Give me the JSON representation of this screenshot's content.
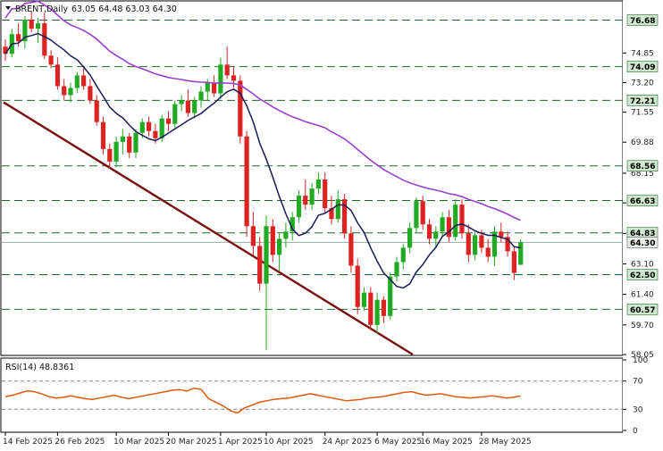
{
  "header": {
    "symbol": "BRENT,Daily",
    "ohlc": "63.05 64.48 63.03 64.30",
    "arrow_icon": "triangle-down-icon"
  },
  "rsi": {
    "title": "RSI(14) 48.8361",
    "levels": [
      100,
      70,
      30,
      0
    ],
    "line_color": "#e05a10",
    "level_color": "#888888",
    "values": [
      48,
      50,
      53,
      56,
      55,
      52,
      48,
      46,
      47,
      49,
      47,
      45,
      44,
      46,
      48,
      50,
      47,
      45,
      47,
      49,
      51,
      53,
      55,
      57,
      58,
      56,
      60,
      58,
      45,
      40,
      35,
      28,
      25,
      32,
      36,
      40,
      42,
      44,
      45,
      46,
      48,
      50,
      52,
      50,
      48,
      46,
      44,
      42,
      43,
      44,
      46,
      47,
      48,
      50,
      52,
      54,
      55,
      52,
      50,
      51,
      52,
      50,
      48,
      47,
      46,
      47,
      48,
      49,
      48,
      46,
      47,
      49
    ]
  },
  "colors": {
    "bull": "#22aa22",
    "bear": "#dd2222",
    "ma_fast": "#1a1a5a",
    "ma_slow": "#9b3fd0",
    "trend": "#7a1010",
    "level_line": "#1c6b2a",
    "price_tag": "#cfe8cf"
  },
  "chart_data": {
    "type": "candlestick",
    "title": "BRENT,Daily",
    "ylim": [
      58.05,
      77.7
    ],
    "y_ticks": [
      74.85,
      73.2,
      71.55,
      69.88,
      68.15,
      66.5,
      64.8,
      63.1,
      61.4,
      59.7,
      58.05
    ],
    "x_labels": [
      "14 Feb 2025",
      "26 Feb 2025",
      "10 Mar 2025",
      "20 Mar 2025",
      "1 Apr 2025",
      "10 Apr 2025",
      "24 Apr 2025",
      "6 May 2025",
      "16 May 2025",
      "28 May 2025"
    ],
    "x_label_index": [
      0,
      8,
      17,
      25,
      33,
      40,
      49,
      57,
      64,
      73
    ],
    "levels": [
      76.68,
      74.09,
      72.21,
      68.56,
      66.63,
      64.83,
      62.5,
      60.57
    ],
    "current_price": 64.3,
    "candles": [
      [
        75.2,
        75.6,
        74.4,
        74.8
      ],
      [
        74.8,
        76.2,
        74.6,
        75.9
      ],
      [
        75.9,
        76.5,
        75.2,
        75.5
      ],
      [
        75.5,
        76.9,
        75.1,
        76.7
      ],
      [
        76.7,
        77.2,
        76.0,
        76.2
      ],
      [
        76.2,
        76.8,
        75.4,
        76.5
      ],
      [
        76.5,
        77.1,
        74.5,
        74.7
      ],
      [
        74.7,
        75.0,
        74.0,
        74.2
      ],
      [
        74.2,
        74.6,
        72.8,
        73.0
      ],
      [
        73.0,
        73.4,
        72.2,
        72.5
      ],
      [
        72.5,
        73.2,
        72.1,
        72.9
      ],
      [
        72.9,
        73.8,
        72.6,
        73.6
      ],
      [
        73.6,
        74.0,
        72.8,
        73.0
      ],
      [
        73.0,
        73.4,
        72.0,
        72.2
      ],
      [
        72.2,
        72.5,
        70.8,
        71.0
      ],
      [
        71.0,
        71.3,
        69.2,
        69.5
      ],
      [
        69.5,
        69.8,
        68.4,
        68.8
      ],
      [
        68.8,
        70.2,
        68.5,
        69.9
      ],
      [
        69.9,
        70.6,
        69.2,
        70.2
      ],
      [
        70.2,
        70.4,
        69.0,
        69.3
      ],
      [
        69.3,
        70.6,
        69.0,
        70.4
      ],
      [
        70.4,
        71.2,
        70.1,
        71.0
      ],
      [
        71.0,
        71.3,
        70.2,
        70.5
      ],
      [
        70.5,
        70.9,
        69.8,
        70.1
      ],
      [
        70.1,
        71.4,
        69.9,
        71.2
      ],
      [
        71.2,
        71.6,
        70.5,
        70.9
      ],
      [
        70.9,
        72.2,
        70.7,
        72.0
      ],
      [
        72.0,
        72.5,
        71.6,
        72.2
      ],
      [
        72.2,
        72.8,
        71.3,
        71.5
      ],
      [
        71.5,
        72.4,
        71.2,
        72.2
      ],
      [
        72.2,
        73.0,
        71.8,
        72.7
      ],
      [
        72.7,
        73.4,
        72.2,
        73.2
      ],
      [
        73.2,
        73.6,
        72.4,
        72.6
      ],
      [
        72.6,
        74.6,
        72.3,
        74.2
      ],
      [
        74.2,
        75.2,
        73.4,
        73.6
      ],
      [
        73.6,
        74.1,
        72.9,
        73.3
      ],
      [
        73.3,
        73.6,
        69.8,
        70.2
      ],
      [
        70.2,
        70.5,
        64.6,
        65.2
      ],
      [
        65.2,
        66.0,
        63.6,
        64.1
      ],
      [
        64.1,
        64.6,
        61.6,
        62.0
      ],
      [
        62.0,
        65.8,
        58.3,
        65.2
      ],
      [
        65.2,
        65.6,
        63.2,
        63.6
      ],
      [
        63.6,
        64.8,
        62.7,
        64.5
      ],
      [
        64.5,
        65.4,
        64.0,
        64.9
      ],
      [
        64.9,
        66.0,
        64.4,
        65.7
      ],
      [
        65.7,
        67.2,
        65.4,
        66.9
      ],
      [
        66.9,
        67.8,
        66.1,
        66.4
      ],
      [
        66.4,
        67.6,
        66.1,
        67.3
      ],
      [
        67.3,
        68.2,
        67.0,
        67.8
      ],
      [
        67.8,
        68.2,
        65.9,
        66.2
      ],
      [
        66.2,
        66.9,
        65.3,
        65.6
      ],
      [
        65.6,
        67.2,
        65.4,
        66.7
      ],
      [
        66.7,
        67.0,
        64.5,
        64.8
      ],
      [
        64.8,
        65.2,
        62.6,
        63.0
      ],
      [
        63.0,
        63.4,
        60.3,
        60.7
      ],
      [
        60.7,
        61.8,
        60.5,
        61.5
      ],
      [
        61.5,
        61.8,
        59.4,
        59.7
      ],
      [
        59.7,
        61.5,
        59.2,
        61.1
      ],
      [
        61.1,
        61.3,
        59.8,
        60.2
      ],
      [
        60.2,
        62.6,
        60.0,
        62.4
      ],
      [
        62.4,
        63.5,
        62.1,
        63.2
      ],
      [
        63.2,
        64.2,
        62.8,
        64.0
      ],
      [
        64.0,
        65.4,
        63.7,
        65.1
      ],
      [
        65.1,
        66.8,
        64.8,
        66.6
      ],
      [
        66.6,
        66.9,
        65.0,
        65.3
      ],
      [
        65.3,
        65.6,
        64.2,
        64.5
      ],
      [
        64.5,
        65.2,
        64.0,
        64.9
      ],
      [
        64.9,
        66.0,
        64.6,
        65.7
      ],
      [
        65.7,
        66.1,
        64.3,
        64.6
      ],
      [
        64.6,
        66.7,
        64.4,
        66.4
      ],
      [
        66.4,
        66.7,
        64.5,
        64.8
      ],
      [
        64.8,
        65.3,
        63.2,
        63.6
      ],
      [
        63.6,
        64.9,
        63.3,
        64.7
      ],
      [
        64.7,
        65.0,
        63.7,
        64.0
      ],
      [
        64.0,
        64.5,
        63.2,
        63.5
      ],
      [
        63.5,
        65.2,
        63.0,
        64.9
      ],
      [
        64.9,
        65.4,
        64.3,
        64.6
      ],
      [
        64.6,
        64.9,
        63.5,
        63.8
      ],
      [
        63.8,
        64.1,
        62.2,
        62.6
      ],
      [
        63.05,
        64.48,
        63.03,
        64.3
      ]
    ],
    "ma_fast_period": 9,
    "ma_slow_period": 50
  }
}
